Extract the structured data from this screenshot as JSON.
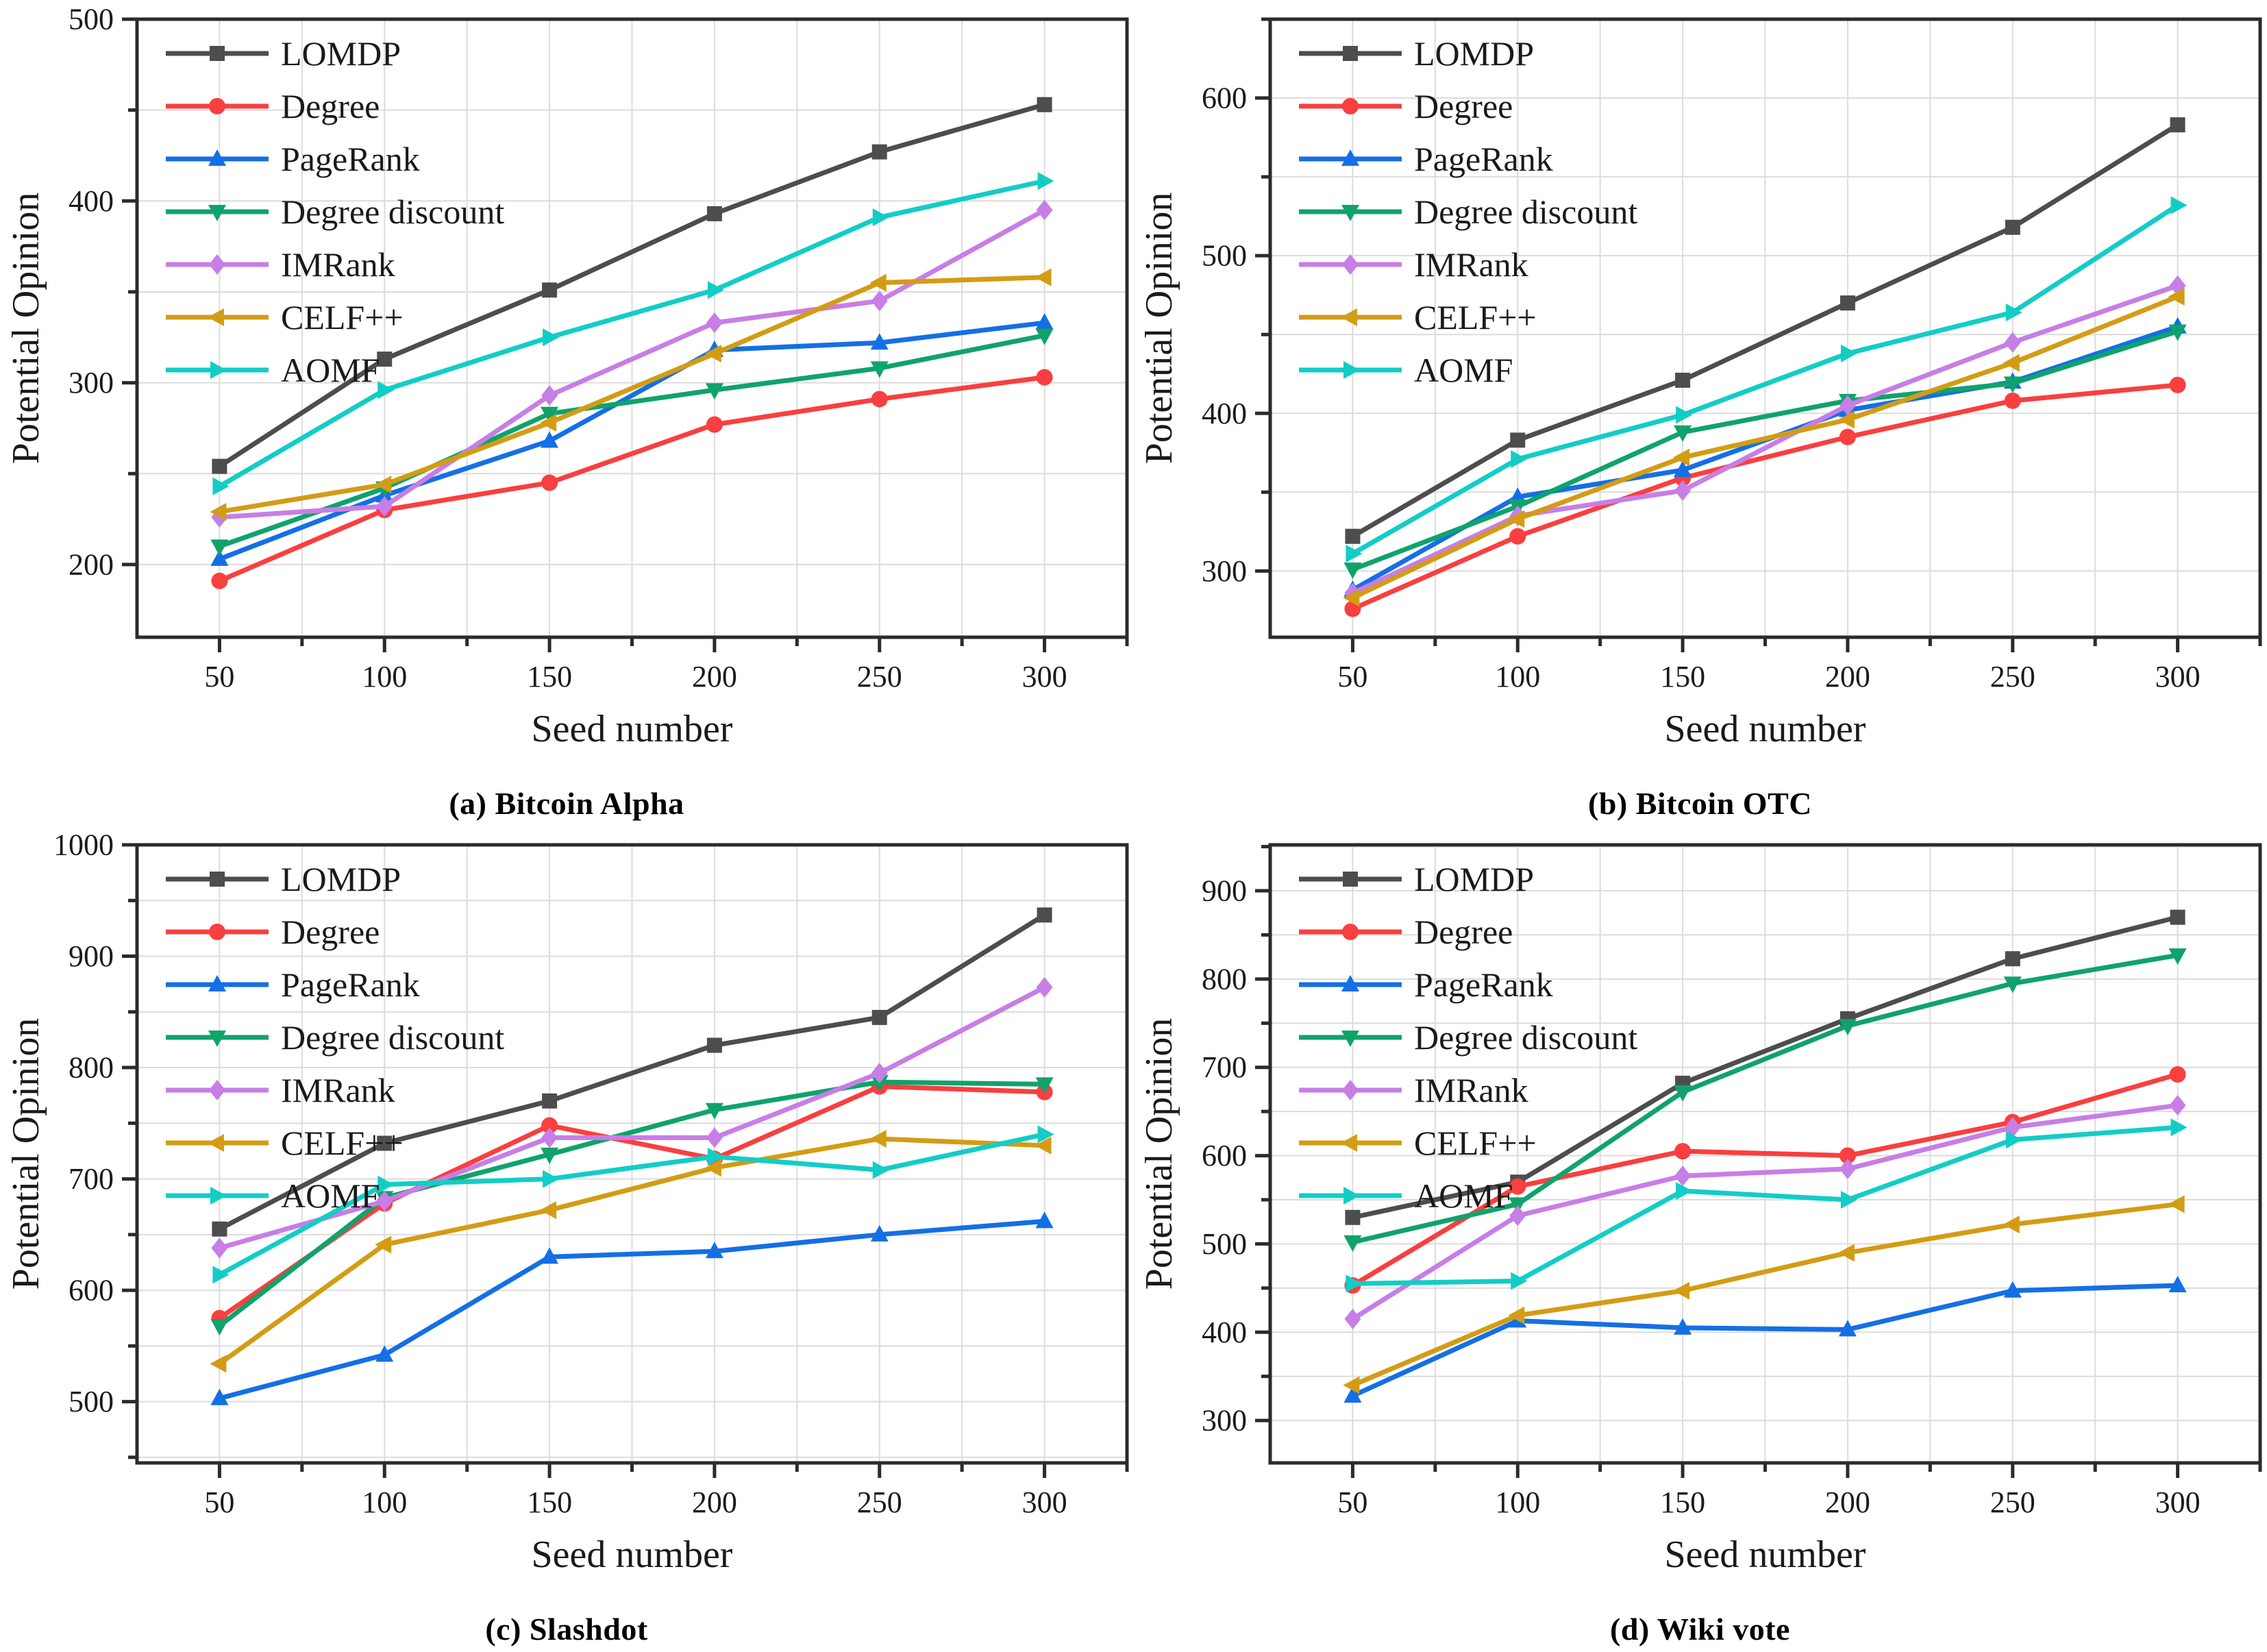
{
  "page": {
    "background": "#ffffff",
    "grid_color": "#dcdcdc",
    "spine_color": "#2b2b2b",
    "tick_color": "#2b2b2b",
    "text_color": "#1a1a1a"
  },
  "chart_data": [
    {
      "type": "line",
      "caption": "(a) Bitcoin Alpha",
      "xlabel": "Seed number",
      "ylabel": "Potential Opinion",
      "x": [
        50,
        100,
        150,
        200,
        250,
        300
      ],
      "xlim": [
        25,
        325
      ],
      "ylim": [
        160,
        500
      ],
      "xticks": [
        50,
        100,
        150,
        200,
        250,
        300
      ],
      "yticks": [
        200,
        300,
        400,
        500
      ],
      "grid": true,
      "legend_position": "top-left",
      "series": [
        {
          "name": "LOMDP",
          "color": "#4d4d4d",
          "marker": "square",
          "values": [
            254,
            313,
            351,
            393,
            427,
            453
          ]
        },
        {
          "name": "Degree",
          "color": "#f93f3f",
          "marker": "circle",
          "values": [
            191,
            230,
            245,
            277,
            291,
            303
          ]
        },
        {
          "name": "PageRank",
          "color": "#146fe6",
          "marker": "triangle-up",
          "values": [
            203,
            238,
            268,
            318,
            322,
            333
          ]
        },
        {
          "name": "Degree discount",
          "color": "#0fa36b",
          "marker": "triangle-down",
          "values": [
            210,
            242,
            283,
            296,
            308,
            326
          ]
        },
        {
          "name": "IMRank",
          "color": "#c77ee6",
          "marker": "diamond",
          "values": [
            226,
            232,
            293,
            333,
            345,
            395
          ]
        },
        {
          "name": "CELF++",
          "color": "#d39c14",
          "marker": "triangle-left",
          "values": [
            229,
            244,
            278,
            316,
            355,
            358
          ]
        },
        {
          "name": "AOMF",
          "color": "#12cdc6",
          "marker": "triangle-right",
          "values": [
            243,
            296,
            325,
            351,
            391,
            411
          ]
        }
      ]
    },
    {
      "type": "line",
      "caption": "(b) Bitcoin OTC",
      "xlabel": "Seed number",
      "ylabel": "Potential Opinion",
      "x": [
        50,
        100,
        150,
        200,
        250,
        300
      ],
      "xlim": [
        25,
        325
      ],
      "ylim": [
        258,
        650
      ],
      "xticks": [
        50,
        100,
        150,
        200,
        250,
        300
      ],
      "yticks": [
        300,
        400,
        500,
        600
      ],
      "grid": true,
      "legend_position": "top-left",
      "series": [
        {
          "name": "LOMDP",
          "color": "#4d4d4d",
          "marker": "square",
          "values": [
            322,
            383,
            421,
            470,
            518,
            583
          ]
        },
        {
          "name": "Degree",
          "color": "#f93f3f",
          "marker": "circle",
          "values": [
            276,
            322,
            359,
            385,
            408,
            418
          ]
        },
        {
          "name": "PageRank",
          "color": "#146fe6",
          "marker": "triangle-up",
          "values": [
            288,
            347,
            364,
            402,
            420,
            455
          ]
        },
        {
          "name": "Degree discount",
          "color": "#0fa36b",
          "marker": "triangle-down",
          "values": [
            301,
            341,
            388,
            408,
            419,
            452
          ]
        },
        {
          "name": "IMRank",
          "color": "#c77ee6",
          "marker": "diamond",
          "values": [
            286,
            335,
            351,
            405,
            445,
            481
          ]
        },
        {
          "name": "CELF++",
          "color": "#d39c14",
          "marker": "triangle-left",
          "values": [
            283,
            333,
            372,
            396,
            432,
            474
          ]
        },
        {
          "name": "AOMF",
          "color": "#12cdc6",
          "marker": "triangle-right",
          "values": [
            311,
            371,
            399,
            438,
            464,
            532
          ]
        }
      ]
    },
    {
      "type": "line",
      "caption": "(c) Slashdot",
      "xlabel": "Seed number",
      "ylabel": "Potential Opinion",
      "x": [
        50,
        100,
        150,
        200,
        250,
        300
      ],
      "xlim": [
        25,
        325
      ],
      "ylim": [
        445,
        1000
      ],
      "xticks": [
        50,
        100,
        150,
        200,
        250,
        300
      ],
      "yticks": [
        500,
        600,
        700,
        800,
        900,
        1000
      ],
      "grid": true,
      "legend_position": "top-left",
      "series": [
        {
          "name": "LOMDP",
          "color": "#4d4d4d",
          "marker": "square",
          "values": [
            655,
            732,
            770,
            820,
            845,
            937
          ]
        },
        {
          "name": "Degree",
          "color": "#f93f3f",
          "marker": "circle",
          "values": [
            575,
            678,
            748,
            718,
            783,
            778
          ]
        },
        {
          "name": "PageRank",
          "color": "#146fe6",
          "marker": "triangle-up",
          "values": [
            503,
            542,
            630,
            635,
            650,
            662
          ]
        },
        {
          "name": "Degree discount",
          "color": "#0fa36b",
          "marker": "triangle-down",
          "values": [
            568,
            683,
            722,
            762,
            787,
            785
          ]
        },
        {
          "name": "IMRank",
          "color": "#c77ee6",
          "marker": "diamond",
          "values": [
            638,
            680,
            737,
            737,
            795,
            872
          ]
        },
        {
          "name": "CELF++",
          "color": "#d39c14",
          "marker": "triangle-left",
          "values": [
            534,
            641,
            672,
            710,
            736,
            730
          ]
        },
        {
          "name": "AOMF",
          "color": "#12cdc6",
          "marker": "triangle-right",
          "values": [
            614,
            695,
            700,
            720,
            708,
            740
          ]
        }
      ]
    },
    {
      "type": "line",
      "caption": "(d) Wiki vote",
      "xlabel": "Seed number",
      "ylabel": "Potential Opinion",
      "x": [
        50,
        100,
        150,
        200,
        250,
        300
      ],
      "xlim": [
        25,
        325
      ],
      "ylim": [
        252,
        952
      ],
      "xticks": [
        50,
        100,
        150,
        200,
        250,
        300
      ],
      "yticks": [
        300,
        400,
        500,
        600,
        700,
        800,
        900
      ],
      "grid": true,
      "legend_position": "top-left",
      "series": [
        {
          "name": "LOMDP",
          "color": "#4d4d4d",
          "marker": "square",
          "values": [
            530,
            570,
            682,
            755,
            823,
            870
          ]
        },
        {
          "name": "Degree",
          "color": "#f93f3f",
          "marker": "circle",
          "values": [
            453,
            565,
            605,
            600,
            638,
            692
          ]
        },
        {
          "name": "PageRank",
          "color": "#146fe6",
          "marker": "triangle-up",
          "values": [
            328,
            413,
            405,
            403,
            447,
            453
          ]
        },
        {
          "name": "Degree discount",
          "color": "#0fa36b",
          "marker": "triangle-down",
          "values": [
            502,
            545,
            672,
            747,
            795,
            827
          ]
        },
        {
          "name": "IMRank",
          "color": "#c77ee6",
          "marker": "diamond",
          "values": [
            415,
            532,
            577,
            585,
            632,
            657
          ]
        },
        {
          "name": "CELF++",
          "color": "#d39c14",
          "marker": "triangle-left",
          "values": [
            340,
            419,
            447,
            490,
            522,
            545
          ]
        },
        {
          "name": "AOMF",
          "color": "#12cdc6",
          "marker": "triangle-right",
          "values": [
            455,
            458,
            560,
            550,
            618,
            632
          ]
        }
      ]
    }
  ]
}
